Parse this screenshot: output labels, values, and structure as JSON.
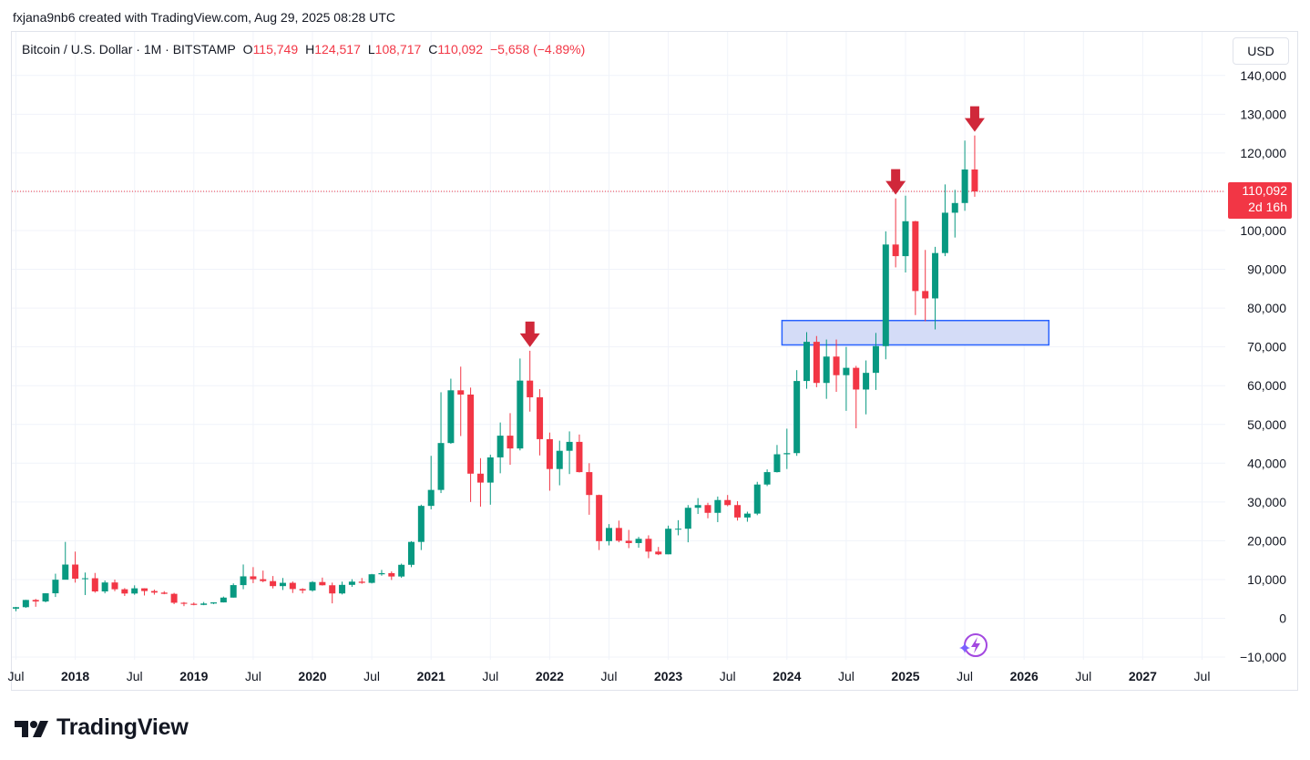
{
  "credit": "fxjana9nb6 created with TradingView.com, Aug 29, 2025 08:28 UTC",
  "legend": {
    "symbol": "Bitcoin / U.S. Dollar · 1M · BITSTAMP",
    "open_label": "O",
    "open": "115,749",
    "high_label": "H",
    "high": "124,517",
    "low_label": "L",
    "low": "108,717",
    "close_label": "C",
    "close": "110,092",
    "change": "−5,658 (−4.89%)"
  },
  "currency_button": "USD",
  "price_tag": {
    "price": "110,092",
    "countdown": "2d 16h"
  },
  "brand": "TradingView",
  "colors": {
    "up": "#089981",
    "down": "#f23645",
    "arrow": "#d0283a",
    "zone_fill": "#d4dcf7",
    "zone_border": "#2962ff",
    "grid": "#f0f3fa"
  },
  "chart_data": {
    "type": "candlestick",
    "timeframe": "1M",
    "ylim": [
      -10000,
      145000
    ],
    "y_ticks": [
      "140,000",
      "130,000",
      "120,000",
      "110,000",
      "100,000",
      "90,000",
      "80,000",
      "70,000",
      "60,000",
      "50,000",
      "40,000",
      "30,000",
      "20,000",
      "10,000",
      "0",
      "−10,000"
    ],
    "x_ticks": [
      "Jul",
      "2018",
      "Jul",
      "2019",
      "Jul",
      "2020",
      "Jul",
      "2021",
      "Jul",
      "2022",
      "Jul",
      "2023",
      "Jul",
      "2024",
      "Jul",
      "2025",
      "Jul",
      "2026",
      "Jul",
      "2027",
      "Jul"
    ],
    "x_tick_bold": [
      false,
      true,
      false,
      true,
      false,
      true,
      false,
      true,
      false,
      true,
      false,
      true,
      false,
      true,
      false,
      true,
      false,
      true,
      false,
      true,
      false
    ],
    "ohlc": [
      [
        "2017-07",
        2490,
        2940,
        1830,
        2870
      ],
      [
        "2017-08",
        2870,
        4760,
        2700,
        4730
      ],
      [
        "2017-09",
        4730,
        5000,
        2970,
        4340
      ],
      [
        "2017-10",
        4340,
        6470,
        4110,
        6450
      ],
      [
        "2017-11",
        6450,
        11500,
        5500,
        9950
      ],
      [
        "2017-12",
        9950,
        19700,
        10700,
        13860
      ],
      [
        "2018-01",
        13860,
        17200,
        9200,
        10220
      ],
      [
        "2018-02",
        10220,
        11800,
        6000,
        10330
      ],
      [
        "2018-03",
        10330,
        11700,
        6600,
        6930
      ],
      [
        "2018-04",
        6930,
        9760,
        6440,
        9240
      ],
      [
        "2018-05",
        9240,
        10000,
        7000,
        7490
      ],
      [
        "2018-06",
        7490,
        7780,
        5750,
        6390
      ],
      [
        "2018-07",
        6390,
        8500,
        6070,
        7730
      ],
      [
        "2018-08",
        7730,
        7760,
        5880,
        7030
      ],
      [
        "2018-09",
        7030,
        7400,
        6100,
        6630
      ],
      [
        "2018-10",
        6630,
        7000,
        6200,
        6310
      ],
      [
        "2018-11",
        6310,
        6560,
        3650,
        4010
      ],
      [
        "2018-12",
        4010,
        4200,
        3130,
        3740
      ],
      [
        "2019-01",
        3740,
        4090,
        3350,
        3460
      ],
      [
        "2019-02",
        3460,
        4200,
        3380,
        3810
      ],
      [
        "2019-03",
        3810,
        4140,
        3680,
        4100
      ],
      [
        "2019-04",
        4100,
        5600,
        4080,
        5340
      ],
      [
        "2019-05",
        5340,
        9000,
        5330,
        8560
      ],
      [
        "2019-06",
        8560,
        13880,
        7500,
        10820
      ],
      [
        "2019-07",
        10820,
        13200,
        9070,
        10080
      ],
      [
        "2019-08",
        10080,
        12300,
        9300,
        9590
      ],
      [
        "2019-09",
        9590,
        10900,
        7700,
        8300
      ],
      [
        "2019-10",
        8300,
        10400,
        7300,
        9150
      ],
      [
        "2019-11",
        9150,
        9500,
        6530,
        7550
      ],
      [
        "2019-12",
        7550,
        7760,
        6430,
        7180
      ],
      [
        "2020-01",
        7180,
        9580,
        6870,
        9350
      ],
      [
        "2020-02",
        9350,
        10500,
        8430,
        8520
      ],
      [
        "2020-03",
        8520,
        9200,
        3850,
        6410
      ],
      [
        "2020-04",
        6410,
        9450,
        6150,
        8620
      ],
      [
        "2020-05",
        8620,
        10080,
        8100,
        9450
      ],
      [
        "2020-06",
        9450,
        10400,
        8900,
        9140
      ],
      [
        "2020-07",
        9140,
        11450,
        8980,
        11350
      ],
      [
        "2020-08",
        11350,
        12480,
        10990,
        11650
      ],
      [
        "2020-09",
        11650,
        12090,
        9880,
        10780
      ],
      [
        "2020-10",
        10780,
        14100,
        10430,
        13800
      ],
      [
        "2020-11",
        13800,
        19900,
        13200,
        19700
      ],
      [
        "2020-12",
        19700,
        29300,
        17600,
        28990
      ],
      [
        "2021-01",
        28990,
        41900,
        28100,
        33110
      ],
      [
        "2021-02",
        33110,
        58300,
        32300,
        45200
      ],
      [
        "2021-03",
        45200,
        61800,
        45000,
        58800
      ],
      [
        "2021-04",
        58800,
        64900,
        47000,
        57700
      ],
      [
        "2021-05",
        57700,
        59500,
        30000,
        37300
      ],
      [
        "2021-06",
        37300,
        41300,
        28800,
        35000
      ],
      [
        "2021-07",
        35000,
        42200,
        29300,
        41500
      ],
      [
        "2021-08",
        41500,
        50500,
        37400,
        47100
      ],
      [
        "2021-09",
        47100,
        52900,
        39600,
        43800
      ],
      [
        "2021-10",
        43800,
        67000,
        43300,
        61300
      ],
      [
        "2021-11",
        61300,
        69000,
        53300,
        57000
      ],
      [
        "2021-12",
        57000,
        59100,
        42000,
        46200
      ],
      [
        "2022-01",
        46200,
        47900,
        32900,
        38500
      ],
      [
        "2022-02",
        38500,
        45800,
        34300,
        43200
      ],
      [
        "2022-03",
        43200,
        48200,
        37200,
        45500
      ],
      [
        "2022-04",
        45500,
        47400,
        37600,
        37700
      ],
      [
        "2022-05",
        37700,
        40000,
        26700,
        31800
      ],
      [
        "2022-06",
        31800,
        31900,
        17600,
        19900
      ],
      [
        "2022-07",
        19900,
        24300,
        18800,
        23300
      ],
      [
        "2022-08",
        23300,
        25200,
        19600,
        20000
      ],
      [
        "2022-09",
        20000,
        22800,
        18100,
        19400
      ],
      [
        "2022-10",
        19400,
        21000,
        18200,
        20500
      ],
      [
        "2022-11",
        20500,
        21400,
        15500,
        17200
      ],
      [
        "2022-12",
        17200,
        18400,
        16300,
        16500
      ],
      [
        "2023-01",
        16500,
        23900,
        16500,
        23100
      ],
      [
        "2023-02",
        23100,
        25300,
        21400,
        23100
      ],
      [
        "2023-03",
        23100,
        29200,
        19600,
        28500
      ],
      [
        "2023-04",
        28500,
        31000,
        26900,
        29200
      ],
      [
        "2023-05",
        29200,
        29800,
        25800,
        27200
      ],
      [
        "2023-06",
        27200,
        31400,
        24800,
        30500
      ],
      [
        "2023-07",
        30500,
        31800,
        28900,
        29200
      ],
      [
        "2023-08",
        29200,
        30200,
        25200,
        26000
      ],
      [
        "2023-09",
        26000,
        27500,
        24900,
        27000
      ],
      [
        "2023-10",
        27000,
        35200,
        26600,
        34500
      ],
      [
        "2023-11",
        34500,
        38400,
        34100,
        37700
      ],
      [
        "2023-12",
        37700,
        44700,
        37600,
        42300
      ],
      [
        "2024-01",
        42300,
        48900,
        38500,
        42600
      ],
      [
        "2024-02",
        42600,
        64000,
        41900,
        61200
      ],
      [
        "2024-03",
        61200,
        73800,
        59200,
        71300
      ],
      [
        "2024-04",
        71300,
        72800,
        59600,
        60700
      ],
      [
        "2024-05",
        60700,
        71900,
        56600,
        67500
      ],
      [
        "2024-06",
        67500,
        71900,
        58400,
        62700
      ],
      [
        "2024-07",
        62700,
        70000,
        53500,
        64600
      ],
      [
        "2024-08",
        64600,
        65100,
        49000,
        59000
      ],
      [
        "2024-09",
        59000,
        66500,
        52600,
        63300
      ],
      [
        "2024-10",
        63300,
        73600,
        58900,
        70200
      ],
      [
        "2024-11",
        70200,
        99800,
        66800,
        96400
      ],
      [
        "2024-12",
        96400,
        108300,
        90500,
        93400
      ],
      [
        "2025-01",
        93400,
        109000,
        89200,
        102400
      ],
      [
        "2025-02",
        102400,
        102500,
        78200,
        84400
      ],
      [
        "2025-03",
        84400,
        95000,
        76600,
        82500
      ],
      [
        "2025-04",
        82500,
        95800,
        74500,
        94200
      ],
      [
        "2025-05",
        94200,
        111900,
        93400,
        104600
      ],
      [
        "2025-06",
        104600,
        110500,
        98200,
        107100
      ],
      [
        "2025-07",
        107100,
        123200,
        105100,
        115749
      ],
      [
        "2025-08",
        115749,
        124517,
        108717,
        110092
      ]
    ],
    "last_price": 110092,
    "zone": {
      "from": "2024-01",
      "to": "2026-03",
      "low": 70500,
      "high": 76800
    },
    "arrows": [
      {
        "date": "2021-11",
        "price": 69000
      },
      {
        "date": "2024-12",
        "price": 108300
      },
      {
        "date": "2025-08",
        "price": 124517
      }
    ]
  }
}
